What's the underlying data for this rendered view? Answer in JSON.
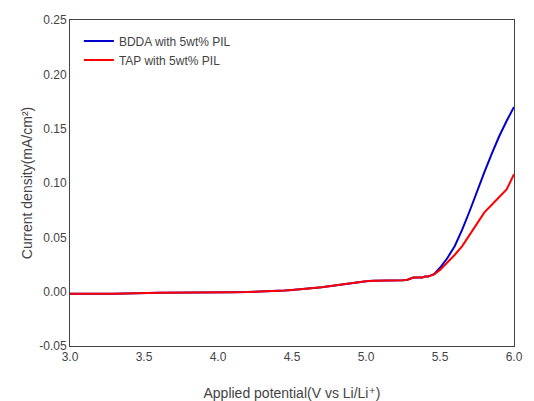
{
  "chart_data": {
    "type": "line",
    "xlabel": "Applied potential(V vs Li/Li⁺)",
    "ylabel": "Current density(mA/cm²)",
    "x": [
      3.0,
      3.3,
      3.6,
      3.9,
      4.1,
      4.2,
      4.3,
      4.35,
      4.4,
      4.45,
      4.5,
      4.55,
      4.6,
      4.65,
      4.7,
      4.75,
      4.8,
      4.85,
      4.9,
      4.95,
      5.0,
      5.05,
      5.1,
      5.15,
      5.2,
      5.25,
      5.28,
      5.3,
      5.32,
      5.34,
      5.36,
      5.38,
      5.4,
      5.42,
      5.44,
      5.46,
      5.5,
      5.55,
      5.6,
      5.65,
      5.7,
      5.75,
      5.8,
      5.85,
      5.9,
      5.95,
      6.0
    ],
    "series": [
      {
        "name": "BDDA with 5wt% PIL",
        "color": "#0000cc",
        "values": [
          -0.002,
          -0.002,
          -0.001,
          -0.001,
          -0.0005,
          -0.0003,
          0.0,
          0.0003,
          0.0005,
          0.001,
          0.0015,
          0.002,
          0.0025,
          0.003,
          0.004,
          0.005,
          0.006,
          0.007,
          0.008,
          0.009,
          0.0095,
          0.01,
          0.01,
          0.01,
          0.01,
          0.0105,
          0.011,
          0.012,
          0.013,
          0.013,
          0.013,
          0.013,
          0.014,
          0.014,
          0.015,
          0.016,
          0.022,
          0.031,
          0.042,
          0.057,
          0.074,
          0.093,
          0.11,
          0.127,
          0.143,
          0.157,
          0.17
        ]
      },
      {
        "name": "TAP with 5wt% PIL",
        "color": "#ff0000",
        "values": [
          -0.002,
          -0.002,
          -0.001,
          -0.001,
          -0.0005,
          -0.0003,
          0.0,
          0.0003,
          0.0005,
          0.001,
          0.0015,
          0.002,
          0.0025,
          0.003,
          0.004,
          0.005,
          0.006,
          0.007,
          0.008,
          0.009,
          0.0095,
          0.01,
          0.01,
          0.01,
          0.01,
          0.0105,
          0.011,
          0.012,
          0.013,
          0.013,
          0.013,
          0.013,
          0.014,
          0.014,
          0.015,
          0.016,
          0.02,
          0.027,
          0.034,
          0.042,
          0.052,
          0.063,
          0.073,
          0.08,
          0.087,
          0.094,
          0.108
        ]
      }
    ],
    "xlim": [
      3.0,
      6.0
    ],
    "ylim": [
      -0.05,
      0.25
    ],
    "xticks": [
      {
        "value": 3.0,
        "label": "3.0"
      },
      3.5,
      {
        "value": 4.0,
        "label": "4.0"
      },
      4.5,
      {
        "value": 5.0,
        "label": "5.0"
      },
      5.5,
      {
        "value": 6.0,
        "label": "6.0"
      }
    ],
    "yticks": [
      -0.05,
      {
        "value": 0.0,
        "label": "0.00"
      },
      0.05,
      {
        "value": 0.1,
        "label": "0.10"
      },
      0.15,
      {
        "value": 0.2,
        "label": "0.20"
      },
      0.25
    ],
    "legend": "upper left",
    "grid": false
  }
}
